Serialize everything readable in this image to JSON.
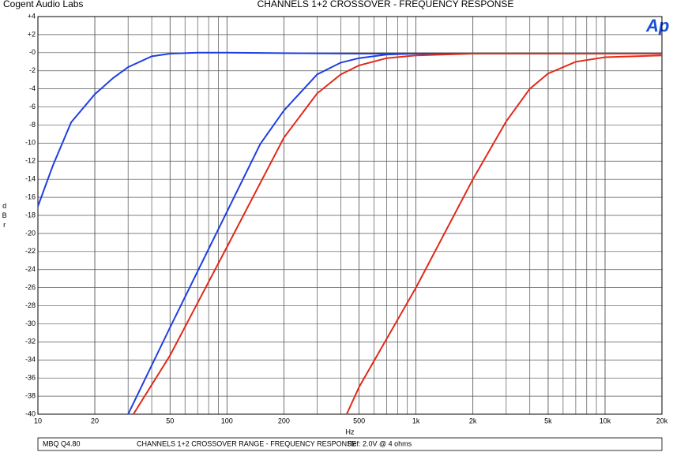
{
  "chart_data": {
    "type": "line",
    "company": "Cogent Audio Labs",
    "title": "CHANNELS 1+2  CROSSOVER  -  FREQUENCY RESPONSE",
    "logo": "Ap",
    "y_label": "dBr",
    "x_label": "Hz",
    "footer": [
      "MBQ Q4.80",
      "CHANNELS 1+2  CROSSOVER RANGE  -  FREQUENCY RESPONSE",
      "Ref: 2.0V @ 4 ohms"
    ],
    "log_x": true,
    "grid": true,
    "xlim": [
      10,
      20000
    ],
    "xticks": [
      10,
      20,
      50,
      100,
      200,
      500,
      {
        "value": 1000,
        "label": "1k"
      },
      {
        "value": 2000,
        "label": "2k"
      },
      {
        "value": 5000,
        "label": "5k"
      },
      {
        "value": 10000,
        "label": "10k"
      },
      {
        "value": 20000,
        "label": "20k"
      }
    ],
    "ylim": [
      -40,
      4
    ],
    "yticks": [
      {
        "value": 4,
        "label": "+4"
      },
      {
        "value": 2,
        "label": "+2"
      },
      {
        "value": 0,
        "label": "-0"
      },
      -2,
      -4,
      -6,
      -8,
      -10,
      -12,
      -14,
      -16,
      -18,
      -20,
      -22,
      -24,
      -26,
      -28,
      -30,
      -32,
      -34,
      -36,
      -38,
      -40
    ],
    "series": [
      {
        "color": "#1f3fe0",
        "x": [
          10,
          12,
          15,
          20,
          25,
          30,
          40,
          50,
          70,
          100,
          200,
          500,
          1000,
          5000,
          20000
        ],
        "values": [
          -17,
          -12.5,
          -7.7,
          -4.6,
          -2.8,
          -1.6,
          -0.4,
          -0.1,
          0,
          0,
          -0.05,
          -0.1,
          -0.1,
          -0.1,
          -0.1
        ]
      },
      {
        "color": "#1f3fe0",
        "x": [
          30,
          50,
          100,
          150,
          200,
          300,
          400,
          500,
          700,
          1000,
          20000
        ],
        "values": [
          -40,
          -30.4,
          -17.6,
          -10.1,
          -6.4,
          -2.4,
          -1.1,
          -0.6,
          -0.2,
          -0.1,
          -0.1
        ]
      },
      {
        "color": "#e02a1a",
        "x": [
          32,
          50,
          100,
          200,
          300,
          400,
          500,
          700,
          1000,
          2000,
          20000
        ],
        "values": [
          -40,
          -33.5,
          -21.5,
          -9.4,
          -4.5,
          -2.4,
          -1.4,
          -0.6,
          -0.3,
          -0.1,
          -0.1
        ]
      },
      {
        "color": "#e02a1a",
        "x": [
          430,
          500,
          1000,
          2000,
          3000,
          4000,
          5000,
          7000,
          10000,
          20000
        ],
        "values": [
          -40,
          -37,
          -26,
          -14,
          -7.6,
          -4,
          -2.3,
          -1,
          -0.5,
          -0.3
        ]
      }
    ]
  }
}
